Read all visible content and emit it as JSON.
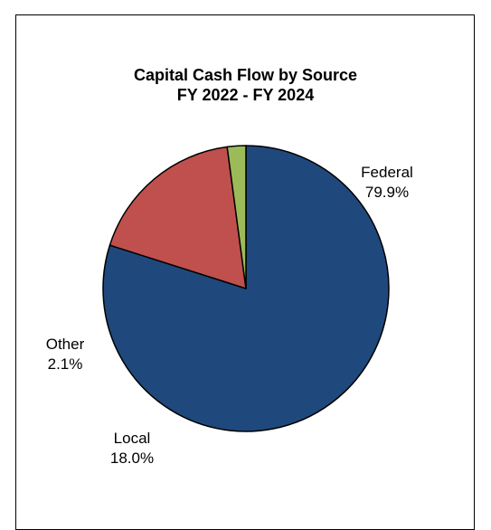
{
  "chart_data": {
    "type": "pie",
    "title": "Capital Cash Flow by Source",
    "subtitle": "FY 2022 - FY 2024",
    "slices": [
      {
        "name": "Federal",
        "value": 79.9,
        "label": "79.9%",
        "color": "#1F497D"
      },
      {
        "name": "Local",
        "value": 18.0,
        "label": "18.0%",
        "color": "#C0504D"
      },
      {
        "name": "Other",
        "value": 2.1,
        "label": "2.1%",
        "color": "#9BBB59"
      }
    ],
    "start_angle": "12 o'clock",
    "direction": "clockwise",
    "legend": "none",
    "slice_border_color": "#000000"
  }
}
